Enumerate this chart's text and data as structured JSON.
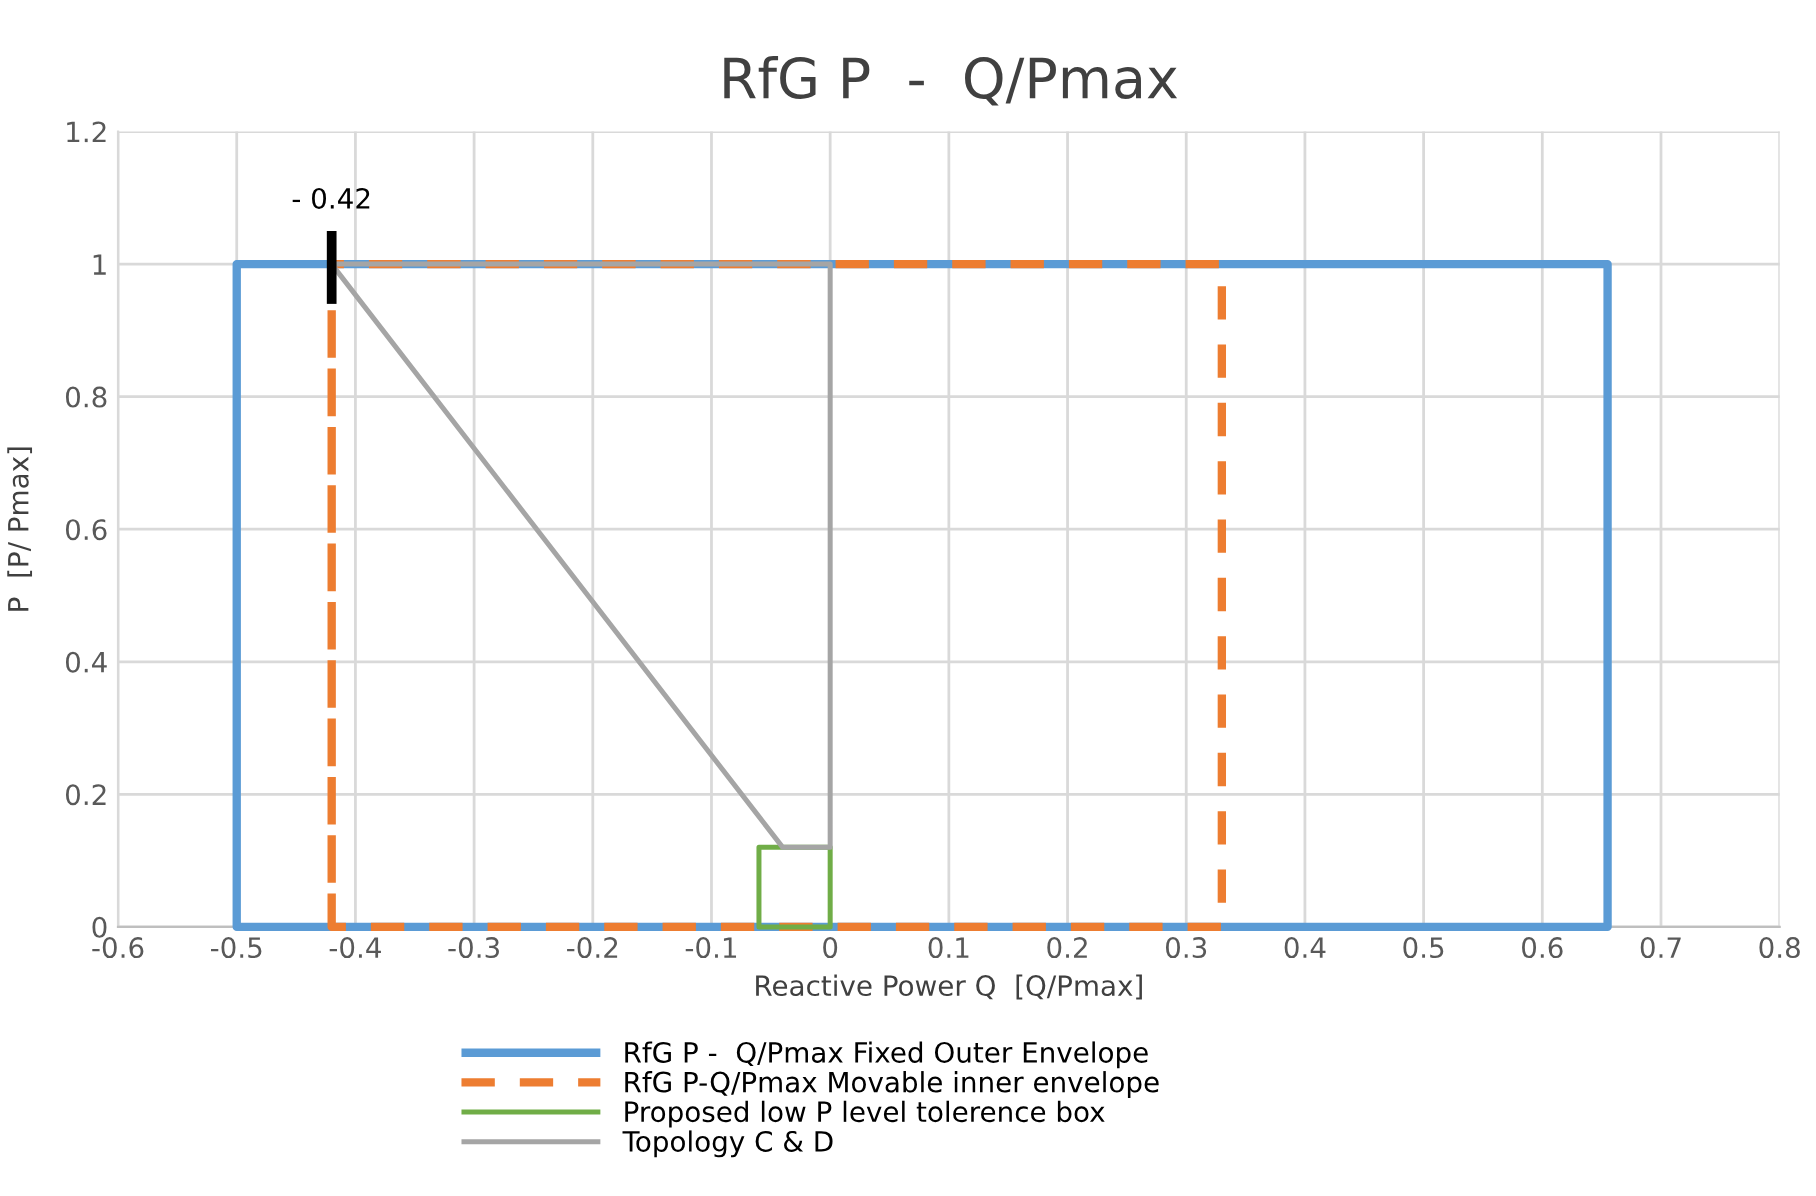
{
  "chart_data": {
    "type": "line",
    "title": "RfG P  -  Q/Pmax",
    "xlabel": "Reactive Power Q  [Q/Pmax]",
    "ylabel": "P  [P/ Pmax]",
    "xlim": [
      -0.6,
      0.8
    ],
    "xticks": [
      -0.6,
      -0.5,
      -0.4,
      -0.3,
      -0.2,
      -0.1,
      0,
      0.1,
      0.2,
      0.3,
      0.4,
      0.5,
      0.6,
      0.7,
      0.8
    ],
    "ylim": [
      0,
      1.2
    ],
    "yticks": [
      0,
      0.2,
      0.4,
      0.6,
      0.8,
      1,
      1.2
    ],
    "grid": true,
    "legend": "bottom",
    "marker": "none",
    "series": [
      {
        "name": "RfG P -  Q/Pmax Fixed Outer Envelope",
        "color": "#5b9bd5",
        "line_style": "solid",
        "x": [
          -0.5,
          -0.5,
          0.655,
          0.655,
          -0.5,
          -0.5
        ],
        "values": [
          0,
          1,
          1,
          0,
          0,
          1
        ]
      },
      {
        "name": "RfG P-Q/Pmax Movable inner envelope",
        "color": "#ed7d31",
        "line_style": "dashed",
        "x": [
          -0.42,
          -0.42,
          0.33,
          0.33,
          -0.42,
          -0.42
        ],
        "values": [
          0,
          1,
          1,
          0,
          0,
          1
        ]
      },
      {
        "name": "Proposed low P level tolerence box",
        "color": "#70ad47",
        "line_style": "solid",
        "x": [
          -0.06,
          -0.06,
          0,
          0,
          -0.06,
          -0.06
        ],
        "values": [
          0,
          0.12,
          0.12,
          0,
          0,
          0.12
        ]
      },
      {
        "name": "Topology C & D",
        "color": "#a5a5a5",
        "line_style": "solid",
        "x": [
          -0.42,
          0,
          0,
          -0.04,
          -0.42,
          0
        ],
        "values": [
          1,
          1,
          0.12,
          0.12,
          1,
          1
        ]
      },
      {
        "color": "#000000",
        "line_style": "solid",
        "x": [
          -0.42,
          -0.42
        ],
        "values": [
          0.94,
          1.05
        ]
      }
    ],
    "annotations": [
      {
        "text": "- 0.42",
        "x": -0.42,
        "y": 1.05
      }
    ]
  }
}
